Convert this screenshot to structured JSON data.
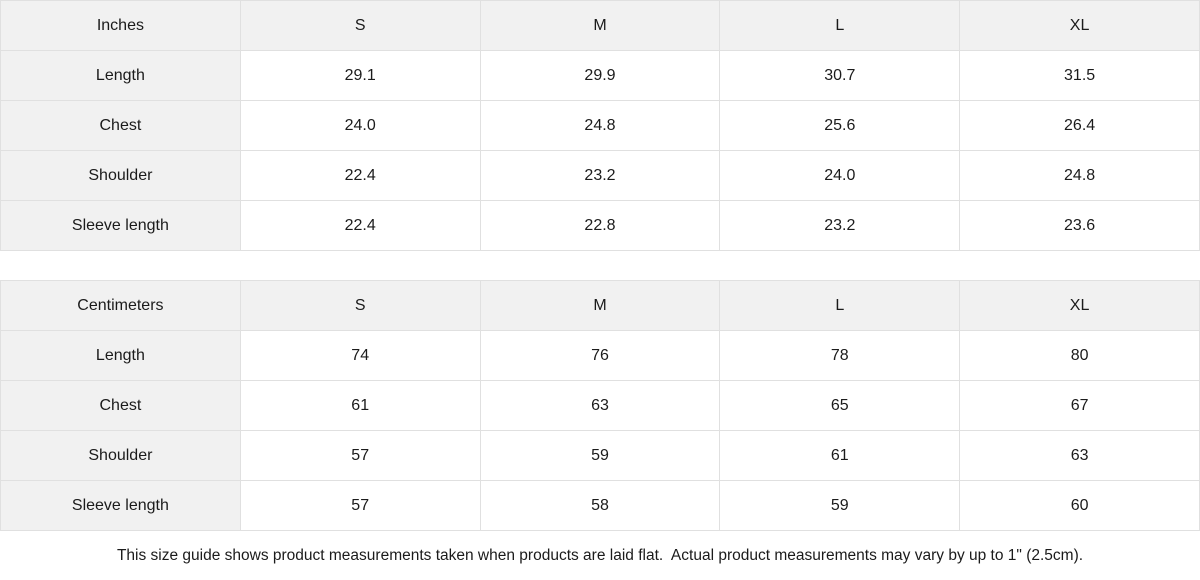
{
  "colors": {
    "header_bg": "#f1f1f1",
    "cell_bg": "#ffffff",
    "border": "#e0e0e0",
    "text": "#1b1b1b"
  },
  "tables": [
    {
      "unit_label": "Inches",
      "columns": [
        "S",
        "M",
        "L",
        "XL"
      ],
      "rows": [
        {
          "label": "Length",
          "values": [
            "29.1",
            "29.9",
            "30.7",
            "31.5"
          ]
        },
        {
          "label": "Chest",
          "values": [
            "24.0",
            "24.8",
            "25.6",
            "26.4"
          ]
        },
        {
          "label": "Shoulder",
          "values": [
            "22.4",
            "23.2",
            "24.0",
            "24.8"
          ]
        },
        {
          "label": "Sleeve length",
          "values": [
            "22.4",
            "22.8",
            "23.2",
            "23.6"
          ]
        }
      ]
    },
    {
      "unit_label": "Centimeters",
      "columns": [
        "S",
        "M",
        "L",
        "XL"
      ],
      "rows": [
        {
          "label": "Length",
          "values": [
            "74",
            "76",
            "78",
            "80"
          ]
        },
        {
          "label": "Chest",
          "values": [
            "61",
            "63",
            "65",
            "67"
          ]
        },
        {
          "label": "Shoulder",
          "values": [
            "57",
            "59",
            "61",
            "63"
          ]
        },
        {
          "label": "Sleeve length",
          "values": [
            "57",
            "58",
            "59",
            "60"
          ]
        }
      ]
    }
  ],
  "footer": {
    "note": "This size guide shows product measurements taken when products are laid flat.  Actual product measurements may vary by up to 1\" (2.5cm)."
  }
}
